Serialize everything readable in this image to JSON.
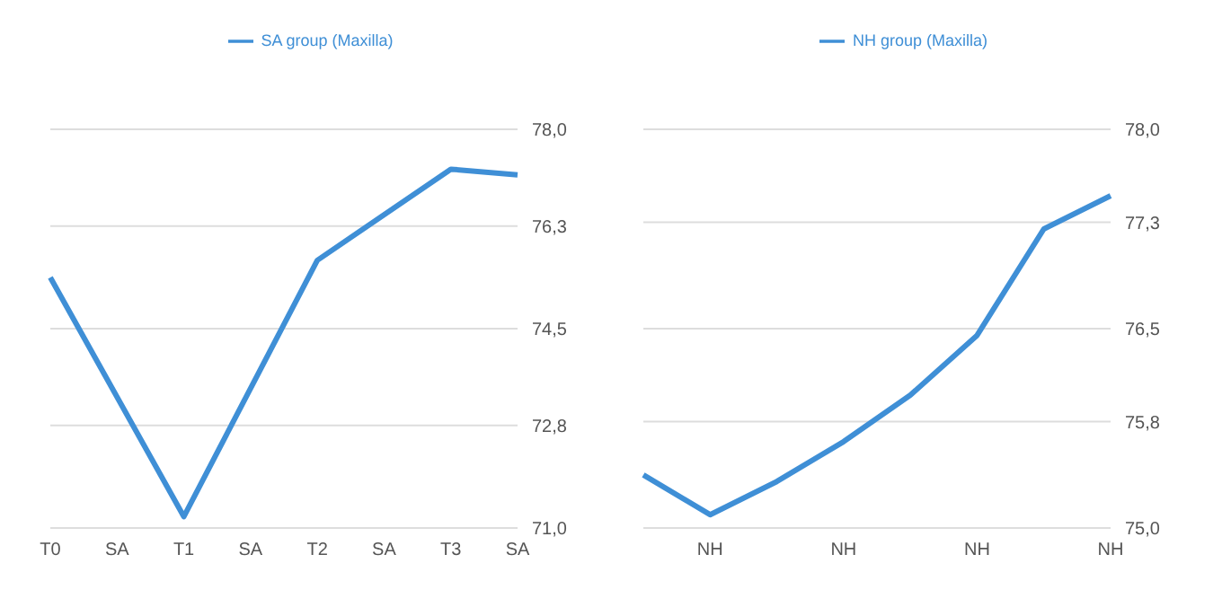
{
  "chart_data": [
    {
      "type": "line",
      "categories": [
        "T0",
        "SA",
        "T1",
        "SA",
        "T2",
        "SA",
        "T3",
        "SA"
      ],
      "series": [
        {
          "name": "SA group (Maxilla)",
          "color": "#3f8fd6",
          "values": [
            75.4,
            null,
            71.2,
            null,
            75.7,
            null,
            77.3,
            77.2
          ]
        }
      ],
      "ylim": [
        71.0,
        78.0
      ],
      "yticks": [
        {
          "value": 71.0,
          "label": "71,0"
        },
        {
          "value": 72.8,
          "label": "72,8"
        },
        {
          "value": 74.5,
          "label": "74,5"
        },
        {
          "value": 76.3,
          "label": "76,3"
        },
        {
          "value": 78.0,
          "label": "78,0"
        }
      ],
      "grid": "y",
      "legend": "top",
      "marker": "none",
      "line_style": "solid"
    },
    {
      "type": "line",
      "categories": [
        null,
        "NH",
        null,
        "NH",
        null,
        "NH",
        null,
        "NH"
      ],
      "series": [
        {
          "name": "NH group (Maxilla)",
          "color": "#3f8fd6",
          "values": [
            75.4,
            75.1,
            75.35,
            75.65,
            76.0,
            76.45,
            77.25,
            77.5
          ]
        }
      ],
      "ylim": [
        75.0,
        78.0
      ],
      "yticks": [
        {
          "value": 75.0,
          "label": "75,0"
        },
        {
          "value": 75.8,
          "label": "75,8"
        },
        {
          "value": 76.5,
          "label": "76,5"
        },
        {
          "value": 77.3,
          "label": "77,3"
        },
        {
          "value": 78.0,
          "label": "78,0"
        }
      ],
      "grid": "y",
      "legend": "top",
      "marker": "none",
      "line_style": "solid"
    }
  ]
}
